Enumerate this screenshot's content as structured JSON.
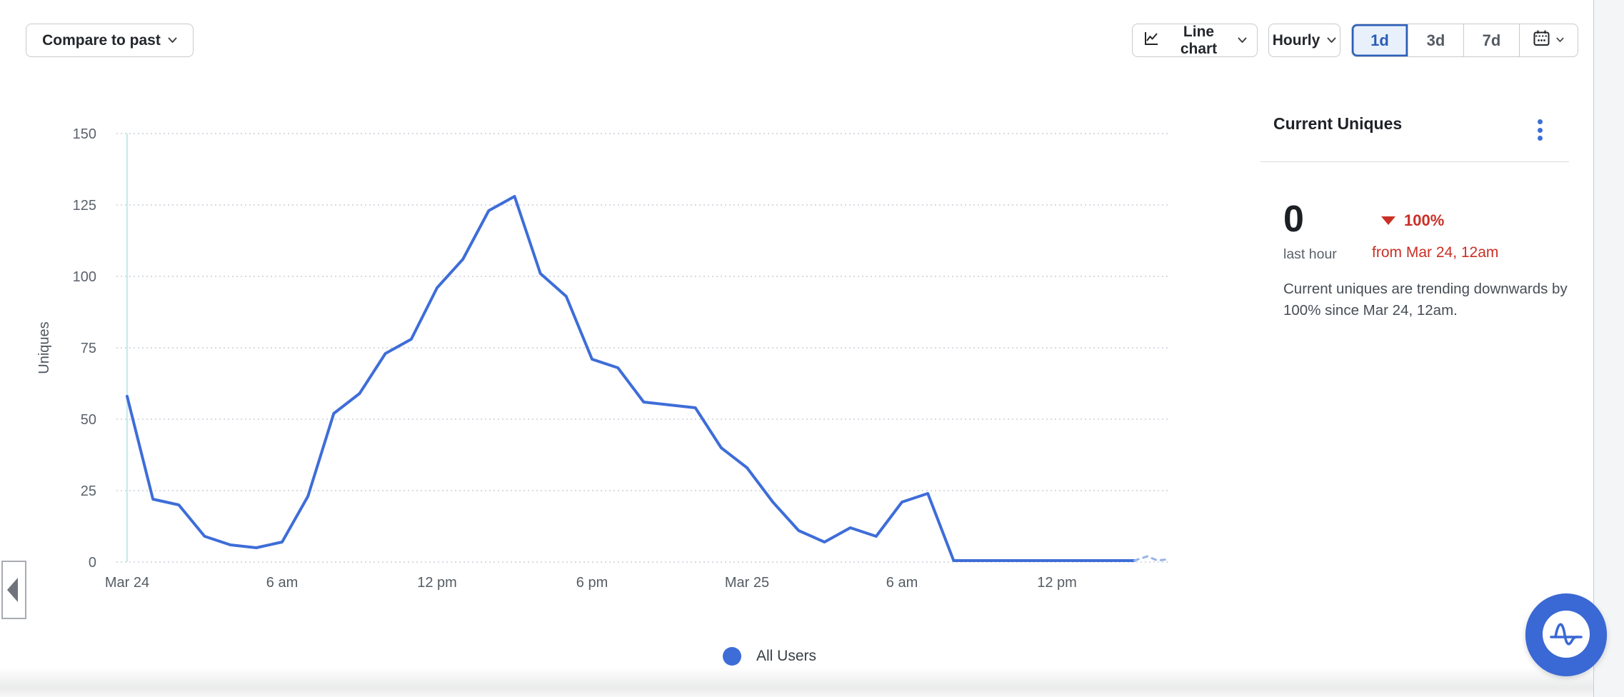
{
  "toolbar": {
    "compare_label": "Compare to past",
    "chart_type_label": "Line chart",
    "granularity_label": "Hourly",
    "range_options": [
      "1d",
      "3d",
      "7d"
    ],
    "selected_range": "1d"
  },
  "legend": {
    "items": [
      {
        "label": "All Users"
      }
    ]
  },
  "panel": {
    "title": "Current Uniques",
    "value": "0",
    "value_caption": "last hour",
    "delta_value": "100%",
    "delta_direction": "down",
    "delta_caption": "from Mar 24, 12am",
    "description": "Current uniques are trending downwards by 100% since Mar 24, 12am."
  },
  "colors": {
    "series_blue": "#3e6dd8",
    "delta_red": "#c93025",
    "kebab_blue": "#3b6fd9",
    "fab_blue": "#3a68d4",
    "selected_range_blue": "#2b5cb5"
  },
  "chart_data": {
    "type": "line",
    "title": "",
    "xlabel": "",
    "ylabel": "Uniques",
    "ylim": [
      0,
      150
    ],
    "y_ticks": [
      150,
      125,
      100,
      75,
      50,
      25,
      0
    ],
    "grid": "dotted-horizontal",
    "granularity": "hourly",
    "start": "Mar 24, 12am",
    "x_tick_hours": [
      0,
      6,
      12,
      18,
      24,
      30,
      36
    ],
    "x_tick_labels": [
      "Mar 24",
      "6 am",
      "12 pm",
      "6 pm",
      "Mar 25",
      "6 am",
      "12 pm"
    ],
    "legend_position": "bottom",
    "series": [
      {
        "name": "All Users",
        "color": "#3e6dd8",
        "values": [
          58,
          22,
          20,
          9,
          6,
          5,
          7,
          23,
          52,
          59,
          73,
          78,
          96,
          106,
          123,
          128,
          101,
          93,
          71,
          68,
          56,
          55,
          54,
          40,
          33,
          21,
          11,
          7,
          12,
          9,
          21,
          24,
          0.5,
          0.5,
          0.5,
          0.5,
          0.5,
          0.5,
          0.5,
          0.5
        ]
      }
    ],
    "pending_dashed_points": [
      [
        39,
        0.5
      ],
      [
        39.5,
        2
      ],
      [
        39.9,
        0.5
      ],
      [
        40.3,
        1
      ]
    ]
  }
}
